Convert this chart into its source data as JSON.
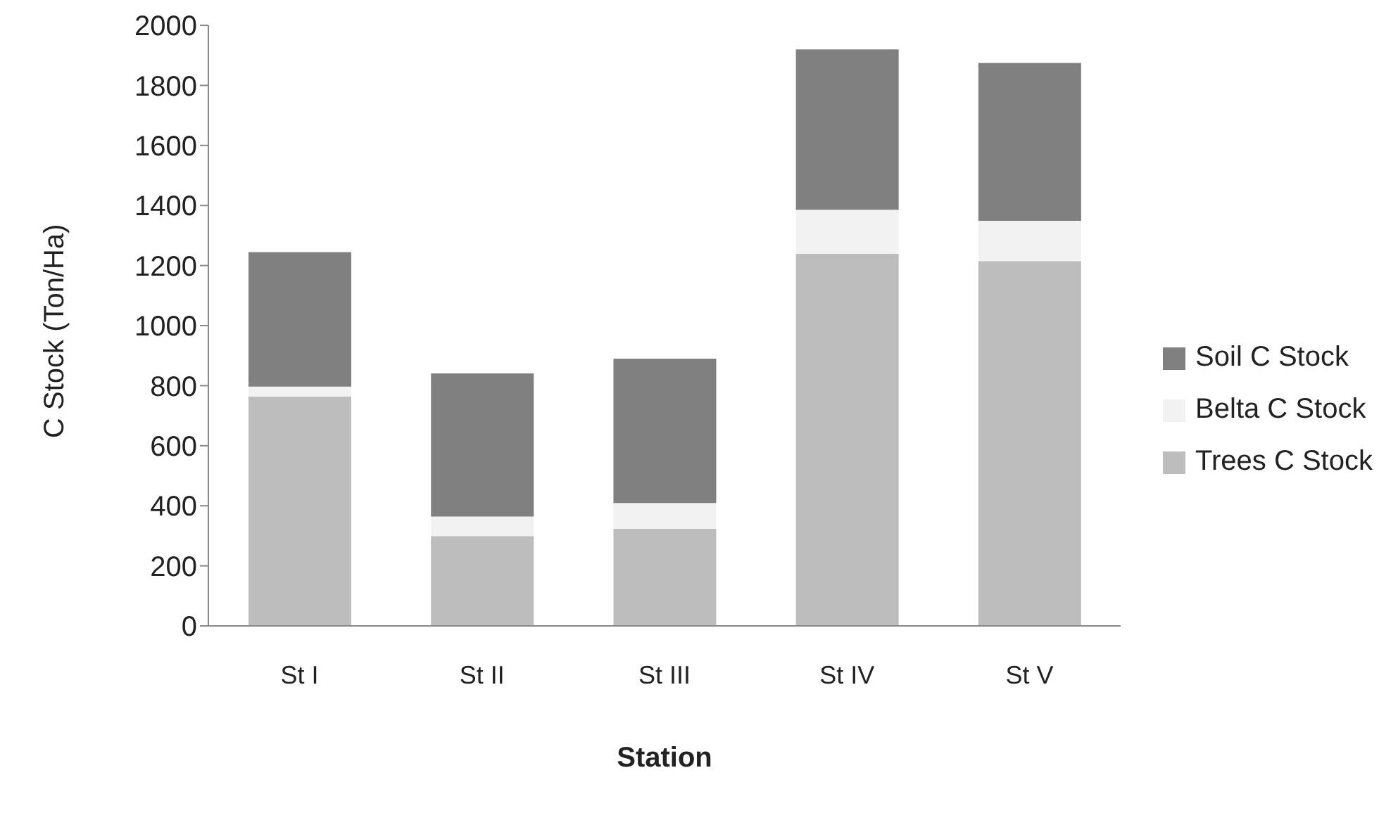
{
  "chart_data": {
    "type": "bar",
    "stacked": true,
    "xlabel": "Station",
    "ylabel": "C Stock (Ton/Ha)",
    "categories": [
      "St I",
      "St II",
      "St III",
      "St IV",
      "St V"
    ],
    "series": [
      {
        "name": "Trees  C Stock",
        "color": "#bdbdbd",
        "values": [
          764,
          299,
          323,
          1239,
          1215
        ]
      },
      {
        "name": "Belta C Stock",
        "color": "#f2f2f2",
        "values": [
          33,
          65,
          86,
          147,
          134
        ]
      },
      {
        "name": "Soil C Stock",
        "color": "#808080",
        "values": [
          448,
          477,
          481,
          534,
          526
        ]
      }
    ],
    "ylim": [
      0,
      2000
    ],
    "yticks": [
      0,
      200,
      400,
      600,
      800,
      1000,
      1200,
      1400,
      1600,
      1800,
      2000
    ],
    "grid": false,
    "legend": "right"
  }
}
